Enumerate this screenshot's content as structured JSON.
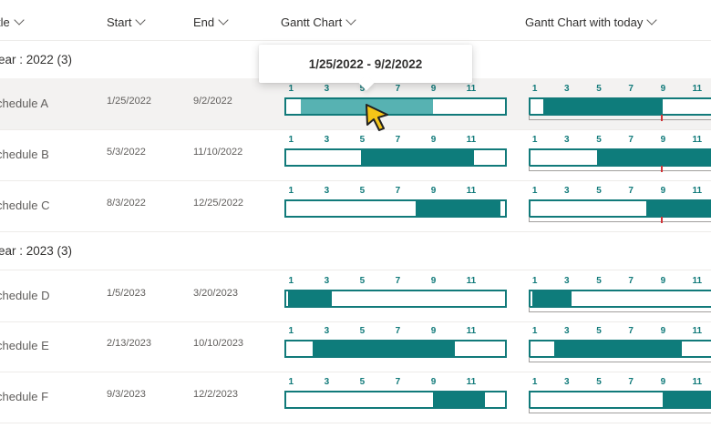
{
  "header": {
    "title_col": "tle",
    "start_col": "Start",
    "end_col": "End",
    "gantt_col": "Gantt Chart",
    "gantt_today_col": "Gantt Chart with today"
  },
  "axis_ticks": [
    "1",
    "3",
    "5",
    "7",
    "9",
    "11"
  ],
  "tooltip": "1/25/2022 - 9/2/2022",
  "groups": [
    {
      "label": "ear : 2022 (3)",
      "rows": [
        {
          "title": "chedule A",
          "start": "1/25/2022",
          "end": "9/2/2022",
          "s": 0.067,
          "e": 0.67,
          "ts": 0.067,
          "te": 0.67,
          "today": 0.66
        },
        {
          "title": "chedule B",
          "start": "5/3/2022",
          "end": "11/10/2022",
          "s": 0.34,
          "e": 0.86,
          "ts": 0.34,
          "te": 1.0,
          "today": 0.66
        },
        {
          "title": "chedule C",
          "start": "8/3/2022",
          "end": "12/25/2022",
          "s": 0.59,
          "e": 0.98,
          "ts": 0.59,
          "te": 1.0,
          "today": 0.66
        }
      ]
    },
    {
      "label": "ear : 2023 (3)",
      "rows": [
        {
          "title": "chedule D",
          "start": "1/5/2023",
          "end": "3/20/2023",
          "s": 0.01,
          "e": 0.21,
          "ts": 0.01,
          "te": 0.21,
          "today": null
        },
        {
          "title": "chedule E",
          "start": "2/13/2023",
          "end": "10/10/2023",
          "s": 0.12,
          "e": 0.77,
          "ts": 0.12,
          "te": 0.77,
          "today": null
        },
        {
          "title": "chedule F",
          "start": "9/3/2023",
          "end": "12/2/2023",
          "s": 0.67,
          "e": 0.91,
          "ts": 0.67,
          "te": 1.0,
          "today": null
        }
      ]
    }
  ],
  "colors": {
    "gantt_fill": "#0e7c7b",
    "gantt_hover_fill": "#57b2b2",
    "today_marker": "#d13438"
  }
}
